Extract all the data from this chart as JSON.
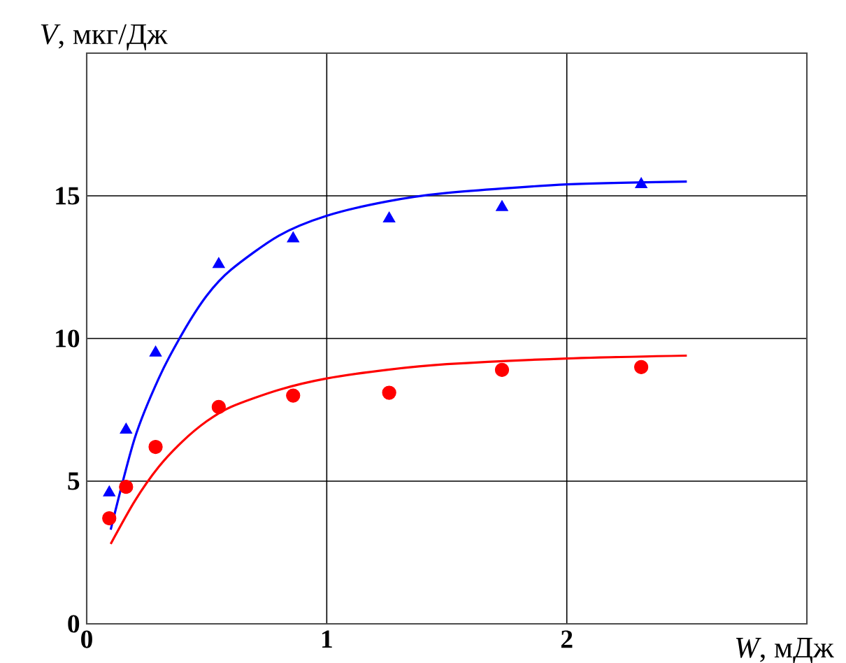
{
  "chart_data": {
    "type": "scatter",
    "xlabel": "*W*, мДж",
    "ylabel": "*V*, мкг/Дж",
    "xlim": [
      0,
      3
    ],
    "ylim": [
      0,
      20
    ],
    "xticks": [
      0,
      1,
      2
    ],
    "yticks": [
      0,
      5,
      10,
      15
    ],
    "grid": true,
    "series": [
      {
        "type": "line",
        "color": "#0000ff",
        "marker": "none",
        "x": [
          0.1,
          0.2,
          0.3,
          0.4,
          0.5,
          0.6,
          0.8,
          1.0,
          1.25,
          1.5,
          2.0,
          2.5
        ],
        "values": [
          3.3,
          6.5,
          8.6,
          10.2,
          11.5,
          12.4,
          13.6,
          14.3,
          14.8,
          15.1,
          15.4,
          15.5
        ]
      },
      {
        "type": "line",
        "color": "#ff0000",
        "marker": "none",
        "x": [
          0.1,
          0.2,
          0.3,
          0.4,
          0.5,
          0.6,
          0.8,
          1.0,
          1.25,
          1.5,
          2.0,
          2.5
        ],
        "values": [
          2.8,
          4.3,
          5.5,
          6.4,
          7.1,
          7.6,
          8.2,
          8.6,
          8.9,
          9.1,
          9.3,
          9.4
        ]
      },
      {
        "color": "#0000ff",
        "marker": "triangle",
        "x": [
          0.094,
          0.164,
          0.287,
          0.55,
          0.86,
          1.26,
          1.73,
          2.31
        ],
        "values": [
          4.6,
          6.8,
          9.5,
          12.6,
          13.5,
          14.2,
          14.6,
          15.4
        ]
      },
      {
        "color": "#ff0000",
        "marker": "circle",
        "x": [
          0.094,
          0.164,
          0.287,
          0.55,
          0.86,
          1.26,
          1.73,
          2.31
        ],
        "values": [
          3.7,
          4.8,
          6.2,
          7.6,
          8.0,
          8.1,
          8.9,
          9.0
        ]
      }
    ]
  }
}
